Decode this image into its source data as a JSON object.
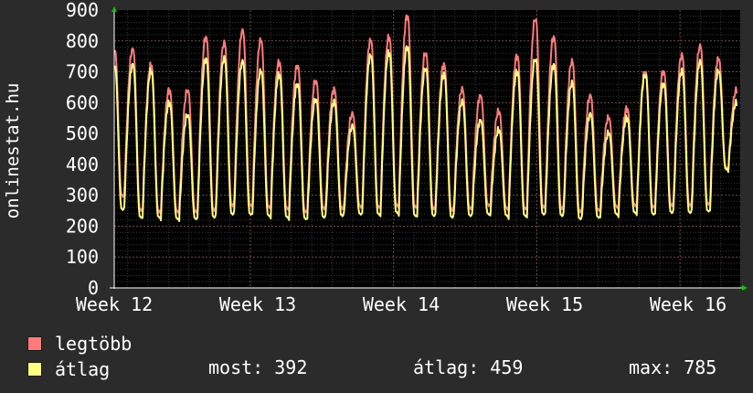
{
  "chart_data": {
    "type": "line",
    "title": "",
    "ylabel": "onlinestat.hu",
    "xlabel": "",
    "ylim": [
      0,
      900
    ],
    "yticks": [
      0,
      100,
      200,
      300,
      400,
      500,
      600,
      700,
      800,
      900
    ],
    "x_tick_labels": [
      "Week 12",
      "Week 13",
      "Week 14",
      "Week 15",
      "Week 16"
    ],
    "grid": true,
    "background": "#000000",
    "series": [
      {
        "name": "legtöbb",
        "color": "#ff7b7b",
        "daily_peaks": [
          770,
          720,
          640,
          640,
          810,
          790,
          830,
          800,
          730,
          720,
          670,
          640,
          560,
          800,
          810,
          880,
          760,
          720,
          640,
          620,
          570,
          750,
          870,
          810,
          730,
          620,
          550,
          580,
          700,
          700,
          750,
          780,
          740,
          640
        ],
        "daily_troughs": [
          300,
          255,
          250,
          250,
          250,
          255,
          270,
          270,
          265,
          260,
          250,
          260,
          260,
          265,
          265,
          270,
          265,
          260,
          255,
          260,
          270,
          260,
          260,
          265,
          260,
          250,
          255,
          265,
          270,
          265,
          270,
          270,
          275,
          390
        ]
      },
      {
        "name": "átlag",
        "color": "#ffff80",
        "daily_peaks": [
          720,
          700,
          600,
          560,
          740,
          740,
          730,
          700,
          690,
          660,
          610,
          600,
          520,
          750,
          760,
          780,
          710,
          690,
          600,
          540,
          510,
          700,
          740,
          720,
          660,
          560,
          500,
          550,
          690,
          660,
          700,
          730,
          700,
          600
        ],
        "daily_troughs": [
          255,
          230,
          230,
          225,
          225,
          230,
          240,
          240,
          235,
          230,
          225,
          230,
          235,
          240,
          240,
          245,
          235,
          235,
          230,
          235,
          240,
          235,
          235,
          240,
          235,
          225,
          230,
          240,
          245,
          240,
          245,
          245,
          250,
          385
        ]
      }
    ]
  },
  "legend": {
    "items": [
      {
        "label": "legtöbb",
        "color": "#ff7b7b"
      },
      {
        "label": "átlag",
        "color": "#ffff80"
      }
    ],
    "stats": {
      "now": "most: 392",
      "avg": "átlag: 459",
      "max": "max: 785"
    }
  }
}
